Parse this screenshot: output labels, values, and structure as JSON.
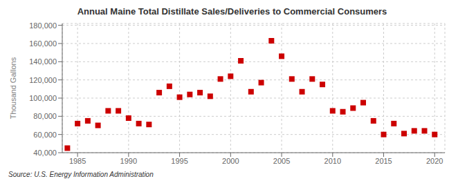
{
  "chart_data": {
    "type": "scatter",
    "title": "Annual Maine Total Distillate Sales/Deliveries to Commercial Consumers",
    "y_label": "Thousand Gallons",
    "annotations": [
      "Source: U.S. Energy Information Administration"
    ],
    "x": [
      1984,
      1985,
      1986,
      1987,
      1988,
      1989,
      1990,
      1991,
      1992,
      1993,
      1994,
      1995,
      1996,
      1997,
      1998,
      1999,
      2000,
      2001,
      2002,
      2003,
      2004,
      2005,
      2006,
      2007,
      2008,
      2009,
      2010,
      2011,
      2012,
      2013,
      2014,
      2015,
      2016,
      2017,
      2018,
      2019,
      2020
    ],
    "values": [
      45000,
      72000,
      75000,
      70000,
      86000,
      86000,
      78000,
      72000,
      71000,
      106000,
      113000,
      101000,
      104000,
      106000,
      102000,
      121000,
      124000,
      141000,
      107000,
      117000,
      163000,
      146000,
      121000,
      107000,
      121000,
      115000,
      86000,
      85000,
      89000,
      95000,
      75000,
      60000,
      72000,
      61000,
      64000,
      64000,
      60000
    ],
    "color": "#cc0000",
    "marker": "square",
    "xlim": [
      1983.5,
      2021
    ],
    "ylim": [
      40000,
      182000
    ],
    "xticks": [
      1985,
      1990,
      1995,
      2000,
      2005,
      2010,
      2015,
      2020
    ],
    "yticks": [
      {
        "value": 40000,
        "label": "40,000"
      },
      {
        "value": 60000,
        "label": "60,000"
      },
      {
        "value": 80000,
        "label": "80,000"
      },
      {
        "value": 100000,
        "label": "100,000"
      },
      {
        "value": 120000,
        "label": "120,000"
      },
      {
        "value": 140000,
        "label": "140,000"
      },
      {
        "value": 160000,
        "label": "160,000"
      },
      {
        "value": 180000,
        "label": "180,000"
      }
    ],
    "grid": true
  }
}
